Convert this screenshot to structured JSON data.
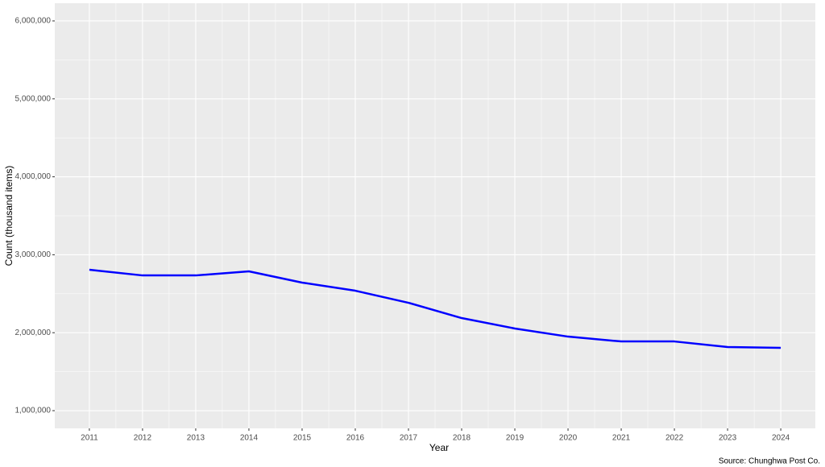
{
  "chart_data": {
    "type": "line",
    "x_label": "Year",
    "y_label": "Count (thousand items)",
    "caption": "Source: Chunghwa Post Co.",
    "x": [
      2011,
      2012,
      2013,
      2014,
      2015,
      2016,
      2017,
      2018,
      2019,
      2020,
      2021,
      2022,
      2023,
      2024
    ],
    "series": [
      {
        "color": "#0000ff",
        "values": [
          2808000,
          2735000,
          2735000,
          2787000,
          2643000,
          2539000,
          2384000,
          2188000,
          2054000,
          1950000,
          1888000,
          1888000,
          1816000,
          1806000
        ]
      }
    ],
    "xlim": [
      2010.35,
      2024.65
    ],
    "xticks": [
      2011,
      2012,
      2013,
      2014,
      2015,
      2016,
      2017,
      2018,
      2019,
      2020,
      2021,
      2022,
      2023,
      2024
    ],
    "ylim": [
      773000,
      6227000
    ],
    "yticks": [
      {
        "value": 1000000,
        "label": "1,000,000"
      },
      {
        "value": 2000000,
        "label": "2,000,000"
      },
      {
        "value": 3000000,
        "label": "3,000,000"
      },
      {
        "value": 4000000,
        "label": "4,000,000"
      },
      {
        "value": 5000000,
        "label": "5,000,000"
      },
      {
        "value": 6000000,
        "label": "6,000,000"
      }
    ],
    "grid": true
  }
}
